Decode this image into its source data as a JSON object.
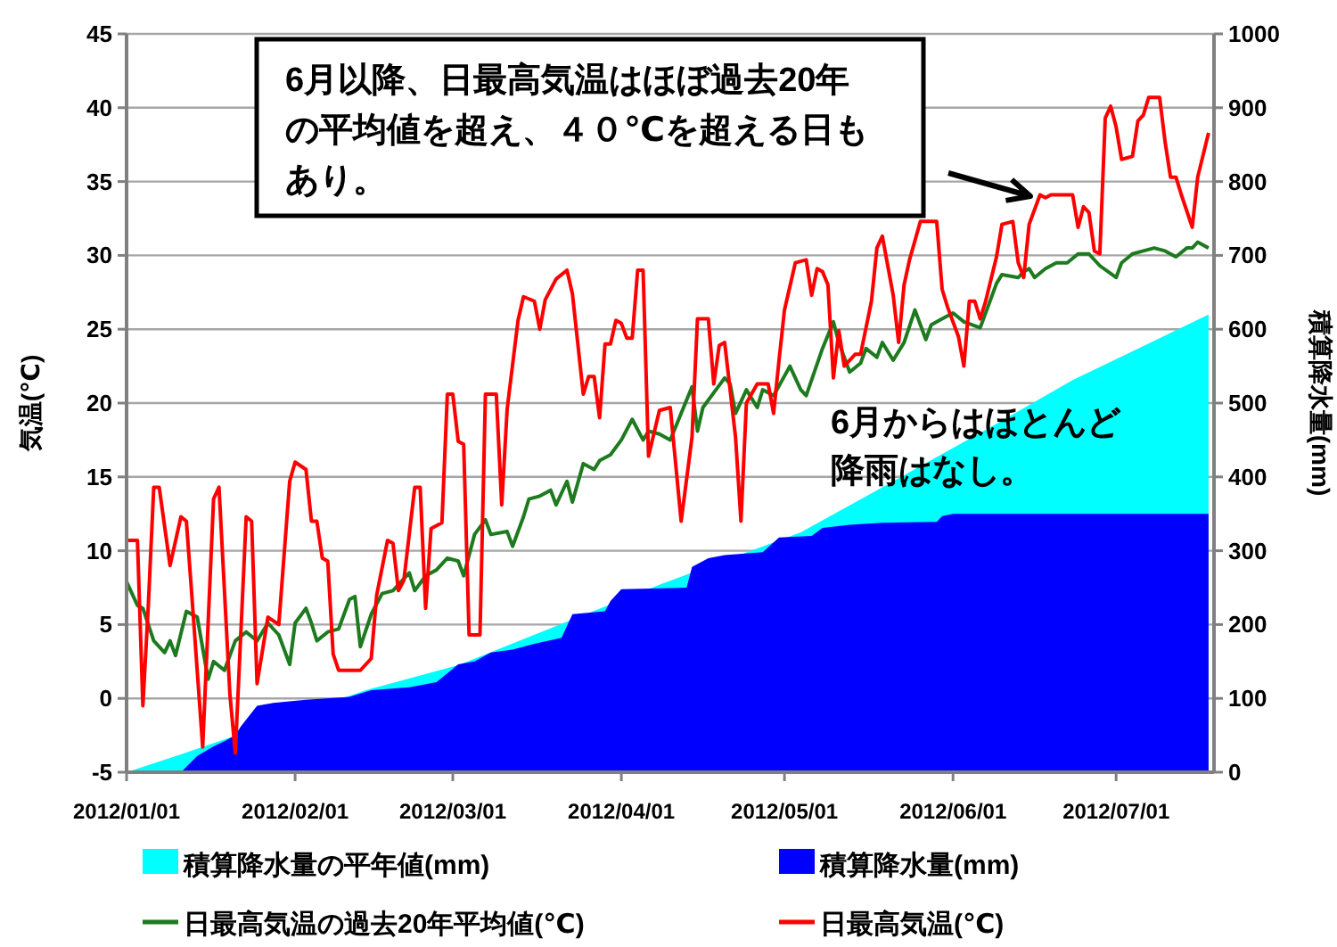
{
  "chart_data": {
    "type": "line",
    "xlim": [
      "2012-01-01",
      "2012-07-19"
    ],
    "xticks": [
      {
        "value": "2012-01-01",
        "label": "2012/01/01"
      },
      {
        "value": "2012-02-01",
        "label": "2012/02/01"
      },
      {
        "value": "2012-03-01",
        "label": "2012/03/01"
      },
      {
        "value": "2012-04-01",
        "label": "2012/04/01"
      },
      {
        "value": "2012-05-01",
        "label": "2012/05/01"
      },
      {
        "value": "2012-06-01",
        "label": "2012/06/01"
      },
      {
        "value": "2012-07-01",
        "label": "2012/07/01"
      }
    ],
    "ylim": [
      -5,
      45
    ],
    "yticks": [
      -5,
      0,
      5,
      10,
      15,
      20,
      25,
      30,
      35,
      40,
      45
    ],
    "y2lim": [
      0,
      1000
    ],
    "y2ticks": [
      0,
      100,
      200,
      300,
      400,
      500,
      600,
      700,
      800,
      900,
      1000
    ],
    "ylabel": "気温(℃)",
    "y2label": "積算降水量(mm)",
    "grid": "y",
    "legend": "bottom",
    "annotations": [
      "6月以降、日最高気温はほぼ過去20年の平均値を超え、４０℃を超える日もあり。",
      "6月からはほとんど降雨はなし。"
    ],
    "series": [
      {
        "name": "積算降水量の平年値(mm)",
        "type": "area",
        "axis": "y2",
        "color": "#00ffff",
        "x": [
          "2012-01-01",
          "2012-01-11",
          "2012-02-14",
          "2012-03-02",
          "2012-04-08",
          "2012-05-04",
          "2012-05-21",
          "2012-06-09",
          "2012-06-23",
          "2012-07-18"
        ],
        "values": [
          0,
          24,
          111,
          145,
          254,
          325,
          394,
          472,
          531,
          620
        ]
      },
      {
        "name": "積算降水量(mm)",
        "type": "area",
        "axis": "y2",
        "color": "#0000ff",
        "x": [
          "2012-01-01",
          "2012-01-11",
          "2012-01-14",
          "2012-01-17",
          "2012-01-19",
          "2012-01-21",
          "2012-01-22",
          "2012-01-25",
          "2012-01-28",
          "2012-02-03",
          "2012-02-11",
          "2012-02-15",
          "2012-02-22",
          "2012-02-27",
          "2012-03-02",
          "2012-03-05",
          "2012-03-08",
          "2012-03-12",
          "2012-03-16",
          "2012-03-21",
          "2012-03-23",
          "2012-03-29",
          "2012-03-30",
          "2012-04-01",
          "2012-04-13",
          "2012-04-14",
          "2012-04-17",
          "2012-04-20",
          "2012-04-27",
          "2012-04-30",
          "2012-05-06",
          "2012-05-08",
          "2012-05-13",
          "2012-05-19",
          "2012-05-29",
          "2012-05-30",
          "2012-06-01",
          "2012-07-18"
        ],
        "values": [
          0,
          0,
          22,
          35,
          42,
          50,
          62,
          90,
          94,
          98,
          102,
          111,
          115,
          122,
          146,
          150,
          162,
          166,
          174,
          182,
          214,
          218,
          232,
          248,
          250,
          278,
          290,
          294,
          298,
          318,
          320,
          331,
          335,
          338,
          339,
          347,
          350,
          350
        ]
      },
      {
        "name": "日最高気温の過去20年平均値(℃)",
        "color": "#1e7a1e",
        "x": [
          "2012-01-01",
          "2012-01-03",
          "2012-01-04",
          "2012-01-06",
          "2012-01-08",
          "2012-01-09",
          "2012-01-10",
          "2012-01-12",
          "2012-01-14",
          "2012-01-16",
          "2012-01-17",
          "2012-01-19",
          "2012-01-21",
          "2012-01-23",
          "2012-01-25",
          "2012-01-27",
          "2012-01-29",
          "2012-01-31",
          "2012-02-01",
          "2012-02-03",
          "2012-02-04",
          "2012-02-05",
          "2012-02-07",
          "2012-02-09",
          "2012-02-11",
          "2012-02-12",
          "2012-02-13",
          "2012-02-15",
          "2012-02-17",
          "2012-02-19",
          "2012-02-20",
          "2012-02-22",
          "2012-02-23",
          "2012-02-25",
          "2012-02-27",
          "2012-02-29",
          "2012-03-02",
          "2012-03-03",
          "2012-03-05",
          "2012-03-07",
          "2012-03-08",
          "2012-03-11",
          "2012-03-12",
          "2012-03-14",
          "2012-03-15",
          "2012-03-17",
          "2012-03-19",
          "2012-03-20",
          "2012-03-22",
          "2012-03-23",
          "2012-03-25",
          "2012-03-27",
          "2012-03-28",
          "2012-03-30",
          "2012-04-01",
          "2012-04-03",
          "2012-04-05",
          "2012-04-06",
          "2012-04-08",
          "2012-04-10",
          "2012-04-12",
          "2012-04-14",
          "2012-04-15",
          "2012-04-16",
          "2012-04-18",
          "2012-04-20",
          "2012-04-21",
          "2012-04-22",
          "2012-04-24",
          "2012-04-26",
          "2012-04-27",
          "2012-04-29",
          "2012-05-02",
          "2012-05-04",
          "2012-05-05",
          "2012-05-08",
          "2012-05-10",
          "2012-05-11",
          "2012-05-13",
          "2012-05-15",
          "2012-05-16",
          "2012-05-18",
          "2012-05-19",
          "2012-05-21",
          "2012-05-23",
          "2012-05-25",
          "2012-05-27",
          "2012-05-28",
          "2012-05-30",
          "2012-06-01",
          "2012-06-03",
          "2012-06-06",
          "2012-06-09",
          "2012-06-10",
          "2012-06-13",
          "2012-06-14",
          "2012-06-15",
          "2012-06-16",
          "2012-06-18",
          "2012-06-20",
          "2012-06-22",
          "2012-06-24",
          "2012-06-26",
          "2012-06-28",
          "2012-07-01",
          "2012-07-02",
          "2012-07-04",
          "2012-07-06",
          "2012-07-08",
          "2012-07-10",
          "2012-07-12",
          "2012-07-14",
          "2012-07-15",
          "2012-07-16",
          "2012-07-18"
        ],
        "values": [
          7.9,
          6.3,
          6.1,
          3.9,
          3.1,
          3.9,
          2.9,
          5.9,
          5.5,
          1.3,
          2.5,
          1.9,
          3.9,
          4.5,
          3.9,
          5.1,
          4.3,
          2.3,
          5.1,
          6.1,
          5.1,
          3.9,
          4.5,
          4.7,
          6.7,
          6.9,
          3.5,
          5.7,
          7.1,
          7.3,
          7.7,
          8.5,
          7.3,
          8.3,
          8.7,
          9.5,
          9.3,
          8.3,
          11.1,
          12.1,
          11.1,
          11.3,
          10.3,
          12.3,
          13.5,
          13.7,
          14.1,
          13.1,
          14.7,
          13.3,
          15.9,
          15.5,
          16.1,
          16.5,
          17.5,
          18.9,
          17.5,
          18.1,
          17.9,
          17.5,
          19.3,
          21.1,
          18.1,
          19.7,
          20.7,
          21.7,
          21.3,
          19.3,
          20.9,
          19.7,
          20.9,
          20.5,
          22.5,
          20.9,
          20.5,
          23.7,
          25.5,
          24.1,
          22.1,
          22.7,
          23.7,
          23.1,
          24.1,
          22.9,
          24.1,
          26.3,
          24.3,
          25.3,
          25.7,
          26.1,
          25.5,
          25.1,
          28.1,
          28.7,
          28.5,
          28.9,
          29.1,
          28.5,
          29.1,
          29.5,
          29.5,
          30.1,
          30.1,
          29.3,
          28.5,
          29.5,
          30.1,
          30.3,
          30.5,
          30.3,
          29.9,
          30.5,
          30.5,
          30.9,
          30.5
        ]
      },
      {
        "name": "日最高気温(℃)",
        "color": "#ff0000",
        "x": [
          "2012-01-01",
          "2012-01-03",
          "2012-01-04",
          "2012-01-05",
          "2012-01-06",
          "2012-01-07",
          "2012-01-09",
          "2012-01-11",
          "2012-01-12",
          "2012-01-13",
          "2012-01-15",
          "2012-01-17",
          "2012-01-18",
          "2012-01-20",
          "2012-01-21",
          "2012-01-23",
          "2012-01-24",
          "2012-01-25",
          "2012-01-27",
          "2012-01-29",
          "2012-01-31",
          "2012-02-01",
          "2012-02-03",
          "2012-02-04",
          "2012-02-05",
          "2012-02-06",
          "2012-02-07",
          "2012-02-08",
          "2012-02-09",
          "2012-02-13",
          "2012-02-15",
          "2012-02-16",
          "2012-02-18",
          "2012-02-19",
          "2012-02-20",
          "2012-02-21",
          "2012-02-23",
          "2012-02-24",
          "2012-02-25",
          "2012-02-26",
          "2012-02-28",
          "2012-02-29",
          "2012-03-01",
          "2012-03-02",
          "2012-03-03",
          "2012-03-04",
          "2012-03-06",
          "2012-03-07",
          "2012-03-09",
          "2012-03-10",
          "2012-03-11",
          "2012-03-13",
          "2012-03-14",
          "2012-03-16",
          "2012-03-17",
          "2012-03-18",
          "2012-03-20",
          "2012-03-22",
          "2012-03-23",
          "2012-03-25",
          "2012-03-26",
          "2012-03-27",
          "2012-03-28",
          "2012-03-29",
          "2012-03-30",
          "2012-03-31",
          "2012-04-01",
          "2012-04-02",
          "2012-04-03",
          "2012-04-04",
          "2012-04-05",
          "2012-04-06",
          "2012-04-08",
          "2012-04-10",
          "2012-04-12",
          "2012-04-14",
          "2012-04-15",
          "2012-04-17",
          "2012-04-18",
          "2012-04-19",
          "2012-04-20",
          "2012-04-22",
          "2012-04-23",
          "2012-04-24",
          "2012-04-26",
          "2012-04-28",
          "2012-04-29",
          "2012-04-30",
          "2012-05-01",
          "2012-05-03",
          "2012-05-05",
          "2012-05-06",
          "2012-05-07",
          "2012-05-08",
          "2012-05-09",
          "2012-05-10",
          "2012-05-11",
          "2012-05-12",
          "2012-05-14",
          "2012-05-15",
          "2012-05-17",
          "2012-05-18",
          "2012-05-19",
          "2012-05-21",
          "2012-05-22",
          "2012-05-23",
          "2012-05-24",
          "2012-05-26",
          "2012-05-28",
          "2012-05-29",
          "2012-05-30",
          "2012-05-31",
          "2012-06-02",
          "2012-06-03",
          "2012-06-04",
          "2012-06-05",
          "2012-06-06",
          "2012-06-07",
          "2012-06-09",
          "2012-06-10",
          "2012-06-12",
          "2012-06-13",
          "2012-06-14",
          "2012-06-15",
          "2012-06-17",
          "2012-06-18",
          "2012-06-19",
          "2012-06-23",
          "2012-06-24",
          "2012-06-25",
          "2012-06-26",
          "2012-06-27",
          "2012-06-28",
          "2012-06-29",
          "2012-06-30",
          "2012-07-01",
          "2012-07-02",
          "2012-07-04",
          "2012-07-05",
          "2012-07-06",
          "2012-07-07",
          "2012-07-09",
          "2012-07-10",
          "2012-07-11",
          "2012-07-12",
          "2012-07-13",
          "2012-07-15",
          "2012-07-16",
          "2012-07-18"
        ],
        "values": [
          10.7,
          10.7,
          -0.5,
          6.3,
          14.3,
          14.3,
          9,
          12.3,
          12,
          7,
          -3.3,
          13.5,
          14.3,
          0.3,
          -3.7,
          12.3,
          12,
          1,
          5.5,
          5,
          14.7,
          16,
          15.5,
          12,
          12,
          9.5,
          9.3,
          3,
          1.9,
          1.9,
          2.7,
          7,
          10.7,
          10.5,
          7.3,
          8,
          14.3,
          14.3,
          6.1,
          11.5,
          11.9,
          20.6,
          20.6,
          17.4,
          17.2,
          4.3,
          4.3,
          20.6,
          20.6,
          13.1,
          19.6,
          25.6,
          27.2,
          26.9,
          25,
          27,
          28.4,
          29,
          27.4,
          20.6,
          21.8,
          21.8,
          19,
          24,
          24,
          25.6,
          25.4,
          24.4,
          24.4,
          29,
          29,
          16.4,
          19.5,
          19.7,
          12,
          17.7,
          25.7,
          25.7,
          21.3,
          23.9,
          24.1,
          17.7,
          12,
          20,
          21.3,
          21.3,
          19.3,
          22.9,
          26.3,
          29.5,
          29.7,
          27.3,
          29.1,
          28.9,
          28,
          21.7,
          24.9,
          22.5,
          23.3,
          23.3,
          26.9,
          30.5,
          31.3,
          27.3,
          24.1,
          28,
          29.7,
          32.3,
          32.3,
          32.3,
          27.7,
          26.5,
          24.5,
          22.5,
          26.9,
          26.9,
          25.7,
          26.9,
          29.9,
          32.1,
          32.3,
          29.5,
          28.5,
          32.1,
          34.1,
          33.9,
          34.1,
          34.1,
          31.9,
          33.3,
          32.9,
          30.3,
          30.1,
          39.3,
          40.1,
          38.7,
          36.5,
          36.7,
          39.1,
          39.5,
          40.7,
          40.7,
          37.7,
          35.3,
          35.3,
          34.1,
          31.9,
          35.3,
          38.3
        ]
      }
    ]
  }
}
